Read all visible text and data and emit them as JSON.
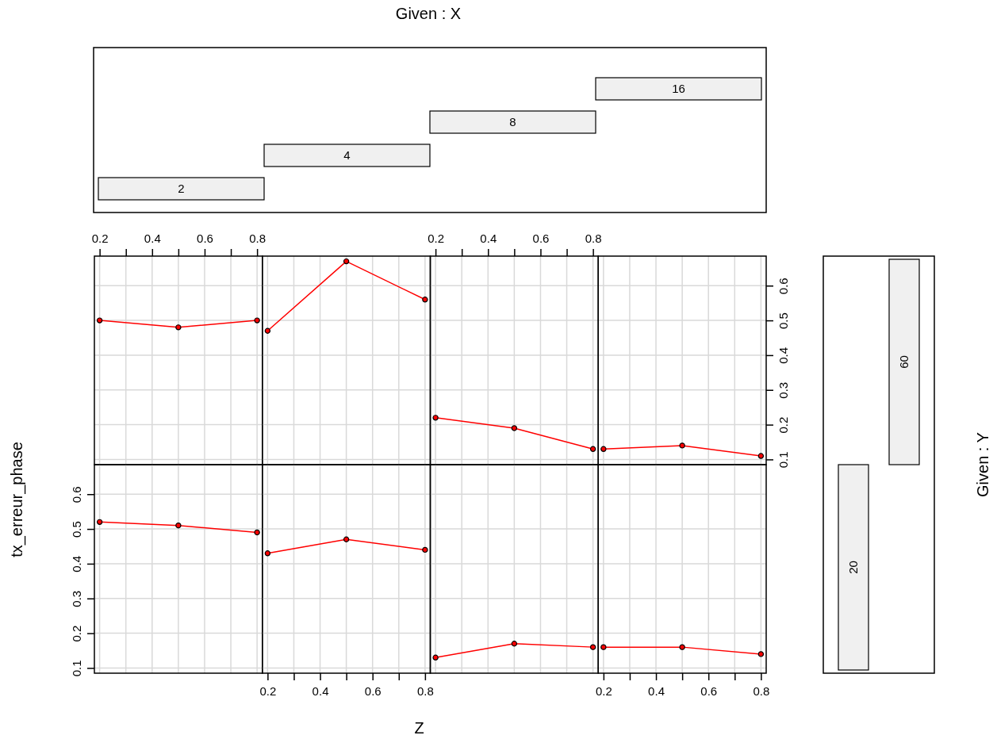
{
  "chart_data": [
    {
      "type": "other",
      "title": "Given : X",
      "annotations": [
        "2",
        "4",
        "8",
        "16"
      ]
    },
    {
      "type": "line",
      "x": [
        0.2,
        0.5,
        0.8
      ],
      "values": [
        0.5,
        0.48,
        0.5
      ],
      "color": "#ff0000",
      "marker": "circle",
      "grid": true,
      "xlim": [
        0.18,
        0.82
      ],
      "ylim": [
        0.085,
        0.685
      ],
      "xticks": [
        0.2,
        {
          "value": 0.3,
          "label": null
        },
        0.4,
        {
          "value": 0.5,
          "label": null
        },
        0.6,
        {
          "value": 0.7,
          "label": null
        },
        0.8
      ],
      "yticks": [
        0.1,
        0.2,
        0.3,
        0.4,
        0.5,
        0.6
      ],
      "tick_labels": "x"
    },
    {
      "type": "line",
      "x": [
        0.2,
        0.5,
        0.8
      ],
      "values": [
        0.47,
        0.67,
        0.56
      ],
      "color": "#ff0000",
      "marker": "circle",
      "grid": true,
      "xlim": [
        0.18,
        0.82
      ],
      "ylim": [
        0.085,
        0.685
      ],
      "xticks": [
        0.2,
        {
          "value": 0.3,
          "label": null
        },
        0.4,
        {
          "value": 0.5,
          "label": null
        },
        0.6,
        {
          "value": 0.7,
          "label": null
        },
        0.8
      ],
      "yticks": [
        0.1,
        0.2,
        0.3,
        0.4,
        0.5,
        0.6
      ],
      "tick_labels": false
    },
    {
      "type": "line",
      "x": [
        0.2,
        0.5,
        0.8
      ],
      "values": [
        0.22,
        0.19,
        0.13
      ],
      "color": "#ff0000",
      "marker": "circle",
      "grid": true,
      "xlim": [
        0.18,
        0.82
      ],
      "ylim": [
        0.085,
        0.685
      ],
      "xticks": [
        0.2,
        {
          "value": 0.3,
          "label": null
        },
        0.4,
        {
          "value": 0.5,
          "label": null
        },
        0.6,
        {
          "value": 0.7,
          "label": null
        },
        0.8
      ],
      "yticks": [
        0.1,
        0.2,
        0.3,
        0.4,
        0.5,
        0.6
      ],
      "tick_labels": "x"
    },
    {
      "type": "line",
      "x": [
        0.2,
        0.5,
        0.8
      ],
      "values": [
        0.13,
        0.14,
        0.11
      ],
      "color": "#ff0000",
      "marker": "circle",
      "grid": true,
      "xlim": [
        0.18,
        0.82
      ],
      "ylim": [
        0.085,
        0.685
      ],
      "xticks": [
        0.2,
        {
          "value": 0.3,
          "label": null
        },
        0.4,
        {
          "value": 0.5,
          "label": null
        },
        0.6,
        {
          "value": 0.7,
          "label": null
        },
        0.8
      ],
      "yticks": [
        0.1,
        0.2,
        0.3,
        0.4,
        0.5,
        0.6
      ],
      "tick_labels": "y"
    },
    {
      "type": "other",
      "title": "Given : Y",
      "annotations": [
        "20",
        "60"
      ]
    },
    {
      "type": "line",
      "x": [
        0.2,
        0.5,
        0.8
      ],
      "values": [
        0.52,
        0.51,
        0.49
      ],
      "color": "#ff0000",
      "marker": "circle",
      "grid": true,
      "xlim": [
        0.18,
        0.82
      ],
      "ylim": [
        0.085,
        0.685
      ],
      "xticks": [
        0.2,
        {
          "value": 0.3,
          "label": null
        },
        0.4,
        {
          "value": 0.5,
          "label": null
        },
        0.6,
        {
          "value": 0.7,
          "label": null
        },
        0.8
      ],
      "yticks": [
        0.1,
        0.2,
        0.3,
        0.4,
        0.5,
        0.6
      ],
      "tick_labels": "y",
      "ylabel": "tx_erreur_phase"
    },
    {
      "type": "line",
      "x": [
        0.2,
        0.5,
        0.8
      ],
      "values": [
        0.43,
        0.47,
        0.44
      ],
      "color": "#ff0000",
      "marker": "circle",
      "grid": true,
      "xlim": [
        0.18,
        0.82
      ],
      "ylim": [
        0.085,
        0.685
      ],
      "xticks": [
        0.2,
        {
          "value": 0.3,
          "label": null
        },
        0.4,
        {
          "value": 0.5,
          "label": null
        },
        0.6,
        {
          "value": 0.7,
          "label": null
        },
        0.8
      ],
      "yticks": [
        0.1,
        0.2,
        0.3,
        0.4,
        0.5,
        0.6
      ],
      "tick_labels": "x",
      "xlabel": "Z"
    },
    {
      "type": "line",
      "x": [
        0.2,
        0.5,
        0.8
      ],
      "values": [
        0.13,
        0.17,
        0.16
      ],
      "color": "#ff0000",
      "marker": "circle",
      "grid": true,
      "xlim": [
        0.18,
        0.82
      ],
      "ylim": [
        0.085,
        0.685
      ],
      "xticks": [
        0.2,
        {
          "value": 0.3,
          "label": null
        },
        0.4,
        {
          "value": 0.5,
          "label": null
        },
        0.6,
        {
          "value": 0.7,
          "label": null
        },
        0.8
      ],
      "yticks": [
        0.1,
        0.2,
        0.3,
        0.4,
        0.5,
        0.6
      ],
      "tick_labels": false
    },
    {
      "type": "line",
      "x": [
        0.2,
        0.5,
        0.8
      ],
      "values": [
        0.16,
        0.16,
        0.14
      ],
      "color": "#ff0000",
      "marker": "circle",
      "grid": true,
      "xlim": [
        0.18,
        0.82
      ],
      "ylim": [
        0.085,
        0.685
      ],
      "xticks": [
        0.2,
        {
          "value": 0.3,
          "label": null
        },
        0.4,
        {
          "value": 0.5,
          "label": null
        },
        0.6,
        {
          "value": 0.7,
          "label": null
        },
        0.8
      ],
      "yticks": [
        0.1,
        0.2,
        0.3,
        0.4,
        0.5,
        0.6
      ],
      "tick_labels": "x"
    }
  ]
}
